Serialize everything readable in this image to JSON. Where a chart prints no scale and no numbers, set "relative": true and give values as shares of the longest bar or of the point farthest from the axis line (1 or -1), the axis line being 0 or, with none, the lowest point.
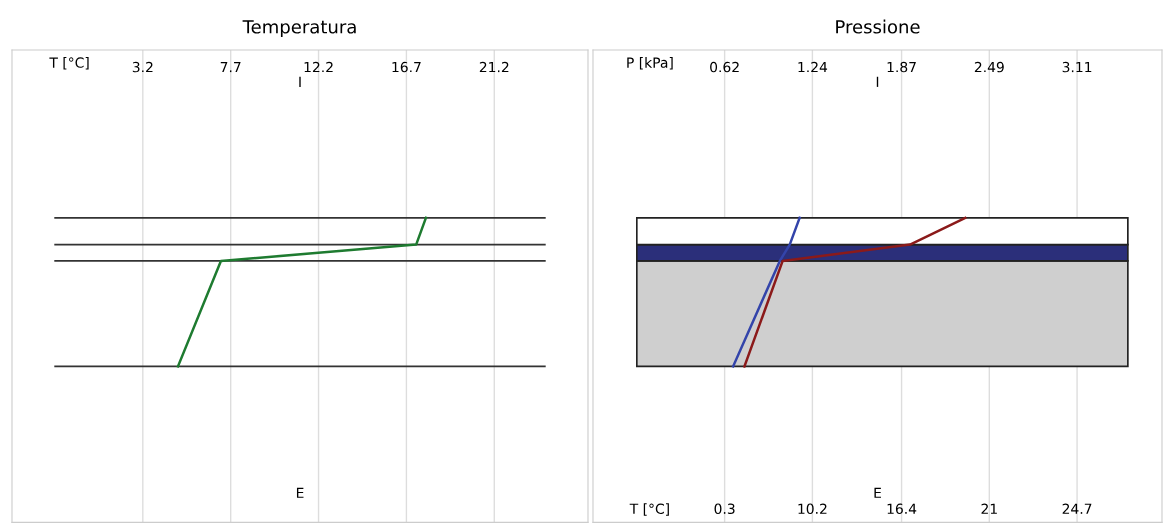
{
  "chart_data": [
    {
      "type": "line",
      "title": "Temperatura",
      "xlabel": "T [°C]",
      "relative": true,
      "xlim": [
        -3.5,
        26.0
      ],
      "xticks": [
        3.2,
        7.7,
        12.2,
        16.7,
        21.2
      ],
      "grid": "x",
      "series": [
        {
          "color": "#1e7b30",
          "x": [
            5.0,
            7.2,
            17.2,
            17.7
          ],
          "values": [
            0,
            0.71,
            0.82,
            1
          ]
        }
      ],
      "ref_lines": [
        {
          "axis": "y",
          "value": 0,
          "color": "#333333"
        },
        {
          "axis": "y",
          "value": 0.71,
          "color": "#333333"
        },
        {
          "axis": "y",
          "value": 0.82,
          "color": "#333333"
        },
        {
          "axis": "y",
          "value": 1,
          "color": "#333333"
        }
      ],
      "annotations": [
        "I",
        "E"
      ]
    },
    {
      "type": "line",
      "title": "Pressione",
      "xlabel": "P [kPa]",
      "relative": true,
      "xlim": [
        -0.31,
        3.71
      ],
      "xticks": [
        0.62,
        1.24,
        1.87,
        2.49,
        3.11
      ],
      "grid": "x",
      "series": [
        {
          "color": "#3344aa",
          "x": [
            0.68,
            1.01,
            1.08,
            1.15
          ],
          "values": [
            0,
            0.71,
            0.82,
            1
          ]
        },
        {
          "color": "#8b1a1a",
          "x": [
            0.76,
            1.03,
            1.93,
            2.32
          ],
          "values": [
            0,
            0.71,
            0.82,
            1
          ]
        }
      ],
      "bands": [
        {
          "axis": "y",
          "from": 0,
          "to": 0.71,
          "color": "#cfcfcf"
        },
        {
          "axis": "y",
          "from": 0.71,
          "to": 0.82,
          "color": "#2b2f7a"
        },
        {
          "axis": "y",
          "from": 0.82,
          "to": 1,
          "color": "#ffffff"
        }
      ],
      "annotations": [
        "I",
        "E",
        "T [°C]",
        "0.3",
        "10.2",
        "16.4",
        "21",
        "24.7"
      ]
    }
  ]
}
